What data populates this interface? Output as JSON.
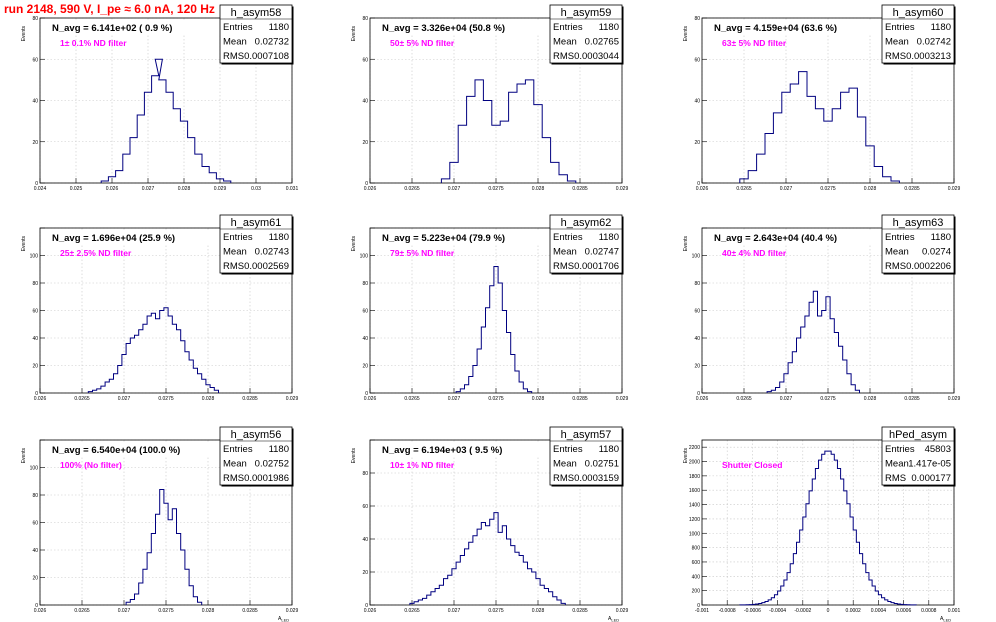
{
  "page": {
    "title": "run 2148,   590 V, I_pe ≈ 6.0 nA, 120 Hz"
  },
  "colors": {
    "title": "#ff0000",
    "hist": "#000080",
    "filter_label": "#ff00ff",
    "grid": "#c8c8c8",
    "axis": "#000000"
  },
  "chart_data": [
    {
      "type": "histogram",
      "name": "h_asym58",
      "stats": {
        "labels": [
          "Entries",
          "Mean",
          "RMS"
        ],
        "values": [
          "1180",
          "0.02732",
          "0.0007108"
        ]
      },
      "n_avg": "N_avg = 6.141e+02 ( 0.9 %)",
      "filter": "1± 0.1% ND filter",
      "ylabel": "Events",
      "xlabel": "",
      "xlim": [
        0.024,
        0.031
      ],
      "ylim": [
        0,
        80
      ],
      "xticks": [
        0.024,
        0.025,
        0.026,
        0.027,
        0.028,
        0.029,
        0.03,
        0.031
      ],
      "xtick_labels": [
        "0.024",
        "0.025",
        "0.026",
        "0.027",
        "0.028",
        "0.029",
        "0.03",
        "0.031"
      ],
      "yticks": [
        0,
        20,
        40,
        60,
        80
      ],
      "ytick_labels": [
        "0",
        "20",
        "40",
        "60",
        "80"
      ],
      "x": [
        0.0258,
        0.026,
        0.0262,
        0.0264,
        0.0266,
        0.0268,
        0.027,
        0.0272,
        0.0273,
        0.0274,
        0.0276,
        0.0278,
        0.028,
        0.0282,
        0.0284,
        0.0286,
        0.0288,
        0.029,
        0.0292
      ],
      "y": [
        1,
        3,
        6,
        14,
        22,
        33,
        44,
        52,
        60,
        50,
        44,
        36,
        30,
        22,
        14,
        8,
        5,
        2,
        1
      ]
    },
    {
      "type": "histogram",
      "name": "h_asym59",
      "stats": {
        "labels": [
          "Entries",
          "Mean",
          "RMS"
        ],
        "values": [
          "1180",
          "0.02765",
          "0.0003044"
        ]
      },
      "n_avg": "N_avg = 3.326e+04 (50.8 %)",
      "filter": "50± 5% ND filter",
      "ylabel": "Events",
      "xlabel": "",
      "xlim": [
        0.026,
        0.029
      ],
      "ylim": [
        0,
        80
      ],
      "xticks": [
        0.026,
        0.0265,
        0.027,
        0.0275,
        0.028,
        0.0285,
        0.029
      ],
      "xtick_labels": [
        "0.026",
        "0.0265",
        "0.027",
        "0.0275",
        "0.028",
        "0.0285",
        "0.029"
      ],
      "yticks": [
        0,
        20,
        40,
        60,
        80
      ],
      "ytick_labels": [
        "0",
        "20",
        "40",
        "60",
        "80"
      ],
      "x": [
        0.0269,
        0.027,
        0.0271,
        0.0272,
        0.0273,
        0.0274,
        0.0275,
        0.0276,
        0.0277,
        0.0278,
        0.0279,
        0.028,
        0.0281,
        0.0282,
        0.0283,
        0.0284
      ],
      "y": [
        2,
        10,
        28,
        42,
        50,
        40,
        28,
        30,
        44,
        48,
        50,
        38,
        22,
        10,
        4,
        1
      ]
    },
    {
      "type": "histogram",
      "name": "h_asym60",
      "stats": {
        "labels": [
          "Entries",
          "Mean",
          "RMS"
        ],
        "values": [
          "1180",
          "0.02742",
          "0.0003213"
        ]
      },
      "n_avg": "N_avg = 4.159e+04 (63.6 %)",
      "filter": "63± 5% ND filter",
      "ylabel": "Events",
      "xlabel": "",
      "xlim": [
        0.026,
        0.029
      ],
      "ylim": [
        0,
        80
      ],
      "xticks": [
        0.026,
        0.0265,
        0.027,
        0.0275,
        0.028,
        0.0285,
        0.029
      ],
      "xtick_labels": [
        "0.026",
        "0.0265",
        "0.027",
        "0.0275",
        "0.028",
        "0.0285",
        "0.029"
      ],
      "yticks": [
        0,
        20,
        40,
        60,
        80
      ],
      "ytick_labels": [
        "0",
        "20",
        "40",
        "60",
        "80"
      ],
      "x": [
        0.0265,
        0.0266,
        0.0267,
        0.0268,
        0.0269,
        0.027,
        0.0271,
        0.0272,
        0.0273,
        0.0274,
        0.0275,
        0.0276,
        0.0277,
        0.0278,
        0.0279,
        0.028,
        0.0281,
        0.0282,
        0.0283
      ],
      "y": [
        2,
        6,
        14,
        24,
        34,
        44,
        48,
        54,
        42,
        36,
        30,
        36,
        44,
        46,
        32,
        18,
        8,
        3,
        1
      ]
    },
    {
      "type": "histogram",
      "name": "h_asym61",
      "stats": {
        "labels": [
          "Entries",
          "Mean",
          "RMS"
        ],
        "values": [
          "1180",
          "0.02743",
          "0.0002569"
        ]
      },
      "n_avg": "N_avg = 1.696e+04 (25.9 %)",
      "filter": "25± 2.5% ND filter",
      "ylabel": "Events",
      "xlabel": "",
      "xlim": [
        0.026,
        0.029
      ],
      "ylim": [
        0,
        120
      ],
      "xticks": [
        0.026,
        0.0265,
        0.027,
        0.0275,
        0.028,
        0.0285,
        0.029
      ],
      "xtick_labels": [
        "0.026",
        "0.0265",
        "0.027",
        "0.0275",
        "0.028",
        "0.0285",
        "0.029"
      ],
      "yticks": [
        0,
        20,
        40,
        60,
        80,
        100,
        120
      ],
      "ytick_labels": [
        "0",
        "20",
        "40",
        "60",
        "80",
        "100",
        ""
      ],
      "x": [
        0.0266,
        0.02665,
        0.0267,
        0.02675,
        0.0268,
        0.02685,
        0.0269,
        0.02695,
        0.027,
        0.02705,
        0.0271,
        0.02715,
        0.0272,
        0.02725,
        0.0273,
        0.02735,
        0.0274,
        0.02745,
        0.0275,
        0.02755,
        0.0276,
        0.02765,
        0.0277,
        0.02775,
        0.0278,
        0.02785,
        0.0279,
        0.02795,
        0.028,
        0.02805,
        0.0281
      ],
      "y": [
        1,
        2,
        3,
        5,
        8,
        10,
        14,
        20,
        28,
        36,
        40,
        42,
        46,
        50,
        56,
        58,
        54,
        60,
        62,
        56,
        50,
        46,
        38,
        30,
        24,
        18,
        14,
        10,
        6,
        4,
        2
      ]
    },
    {
      "type": "histogram",
      "name": "h_asym62",
      "stats": {
        "labels": [
          "Entries",
          "Mean",
          "RMS"
        ],
        "values": [
          "1180",
          "0.02747",
          "0.0001706"
        ]
      },
      "n_avg": "N_avg = 5.223e+04 (79.9 %)",
      "filter": "79± 5% ND filter",
      "ylabel": "Events",
      "xlabel": "",
      "xlim": [
        0.026,
        0.029
      ],
      "ylim": [
        0,
        120
      ],
      "xticks": [
        0.026,
        0.0265,
        0.027,
        0.0275,
        0.028,
        0.0285,
        0.029
      ],
      "xtick_labels": [
        "0.026",
        "0.0265",
        "0.027",
        "0.0275",
        "0.028",
        "0.0285",
        "0.029"
      ],
      "yticks": [
        0,
        20,
        40,
        60,
        80,
        100,
        120
      ],
      "ytick_labels": [
        "0",
        "20",
        "40",
        "60",
        "80",
        "100",
        ""
      ],
      "x": [
        0.02705,
        0.0271,
        0.02715,
        0.0272,
        0.02725,
        0.0273,
        0.02735,
        0.0274,
        0.02745,
        0.0275,
        0.02755,
        0.0276,
        0.02765,
        0.0277,
        0.02775,
        0.0278,
        0.02785,
        0.0279
      ],
      "y": [
        1,
        3,
        6,
        12,
        20,
        32,
        48,
        62,
        78,
        92,
        80,
        60,
        44,
        28,
        16,
        8,
        3,
        1
      ]
    },
    {
      "type": "histogram",
      "name": "h_asym63",
      "stats": {
        "labels": [
          "Entries",
          "Mean",
          "RMS"
        ],
        "values": [
          "1180",
          "0.0274",
          "0.0002206"
        ]
      },
      "n_avg": "N_avg = 2.643e+04 (40.4 %)",
      "filter": "40± 4% ND filter",
      "ylabel": "Events",
      "xlabel": "",
      "xlim": [
        0.026,
        0.029
      ],
      "ylim": [
        0,
        120
      ],
      "xticks": [
        0.026,
        0.0265,
        0.027,
        0.0275,
        0.028,
        0.0285,
        0.029
      ],
      "xtick_labels": [
        "0.026",
        "0.0265",
        "0.027",
        "0.0275",
        "0.028",
        "0.0285",
        "0.029"
      ],
      "yticks": [
        0,
        20,
        40,
        60,
        80,
        100,
        120
      ],
      "ytick_labels": [
        "0",
        "20",
        "40",
        "60",
        "80",
        "100",
        ""
      ],
      "x": [
        0.0268,
        0.02685,
        0.0269,
        0.02695,
        0.027,
        0.02705,
        0.0271,
        0.02715,
        0.0272,
        0.02725,
        0.0273,
        0.02735,
        0.0274,
        0.02745,
        0.0275,
        0.02755,
        0.0276,
        0.02765,
        0.0277,
        0.02775,
        0.0278,
        0.02785
      ],
      "y": [
        1,
        2,
        4,
        8,
        14,
        22,
        30,
        40,
        48,
        56,
        66,
        74,
        56,
        60,
        70,
        54,
        44,
        34,
        24,
        14,
        6,
        2
      ]
    },
    {
      "type": "histogram",
      "name": "h_asym56",
      "stats": {
        "labels": [
          "Entries",
          "Mean",
          "RMS"
        ],
        "values": [
          "1180",
          "0.02752",
          "0.0001986"
        ]
      },
      "n_avg": "N_avg = 6.540e+04 (100.0 %)",
      "filter": "100% (No filter)",
      "ylabel": "Events",
      "xlabel": "A_{LED}",
      "xlim": [
        0.026,
        0.029
      ],
      "ylim": [
        0,
        120
      ],
      "xticks": [
        0.026,
        0.0265,
        0.027,
        0.0275,
        0.028,
        0.0285,
        0.029
      ],
      "xtick_labels": [
        "0.026",
        "0.0265",
        "0.027",
        "0.0275",
        "0.028",
        "0.0285",
        "0.029"
      ],
      "yticks": [
        0,
        20,
        40,
        60,
        80,
        100,
        120
      ],
      "ytick_labels": [
        "0",
        "20",
        "40",
        "60",
        "80",
        "100",
        ""
      ],
      "x": [
        0.02705,
        0.0271,
        0.02715,
        0.0272,
        0.02725,
        0.0273,
        0.02735,
        0.0274,
        0.02745,
        0.0275,
        0.02755,
        0.0276,
        0.02765,
        0.0277,
        0.02775,
        0.0278,
        0.02785,
        0.0279
      ],
      "y": [
        2,
        4,
        8,
        16,
        26,
        38,
        52,
        66,
        84,
        74,
        62,
        70,
        52,
        40,
        26,
        14,
        6,
        2
      ]
    },
    {
      "type": "histogram",
      "name": "h_asym57",
      "stats": {
        "labels": [
          "Entries",
          "Mean",
          "RMS"
        ],
        "values": [
          "1180",
          "0.02751",
          "0.0003159"
        ]
      },
      "n_avg": "N_avg = 6.194e+03 ( 9.5 %)",
      "filter": "10± 1% ND filter",
      "ylabel": "Events",
      "xlabel": "A_{LED}",
      "xlim": [
        0.026,
        0.029
      ],
      "ylim": [
        0,
        100
      ],
      "xticks": [
        0.026,
        0.0265,
        0.027,
        0.0275,
        0.028,
        0.0285,
        0.029
      ],
      "xtick_labels": [
        "0.026",
        "0.0265",
        "0.027",
        "0.0275",
        "0.028",
        "0.0285",
        "0.029"
      ],
      "yticks": [
        0,
        20,
        40,
        60,
        80,
        100
      ],
      "ytick_labels": [
        "0",
        "20",
        "40",
        "60",
        "80",
        ""
      ],
      "x": [
        0.0265,
        0.02655,
        0.0266,
        0.02665,
        0.0267,
        0.02675,
        0.0268,
        0.02685,
        0.0269,
        0.02695,
        0.027,
        0.02705,
        0.0271,
        0.02715,
        0.0272,
        0.02725,
        0.0273,
        0.02735,
        0.0274,
        0.02745,
        0.0275,
        0.02755,
        0.0276,
        0.02765,
        0.0277,
        0.02775,
        0.0278,
        0.02785,
        0.0279,
        0.02795,
        0.028,
        0.02805,
        0.0281,
        0.02815,
        0.0282,
        0.02825,
        0.0283
      ],
      "y": [
        1,
        2,
        3,
        4,
        6,
        8,
        10,
        12,
        16,
        18,
        22,
        26,
        30,
        34,
        38,
        42,
        46,
        50,
        48,
        52,
        56,
        44,
        48,
        40,
        36,
        32,
        30,
        26,
        22,
        20,
        16,
        12,
        10,
        8,
        5,
        3,
        1
      ]
    },
    {
      "type": "histogram",
      "name": "hPed_asym",
      "stats": {
        "labels": [
          "Entries",
          "Mean",
          "RMS"
        ],
        "values": [
          "45803",
          "1.417e-05",
          "0.000177"
        ]
      },
      "n_avg": "",
      "filter": "Shutter Closed",
      "ylabel": "Events",
      "xlabel": "A_{LED}",
      "xlim": [
        -0.001,
        0.001
      ],
      "ylim": [
        0,
        2300
      ],
      "xticks": [
        -0.001,
        -0.0008,
        -0.0006,
        -0.0004,
        -0.0002,
        0,
        0.0002,
        0.0004,
        0.0006,
        0.0008,
        0.001
      ],
      "xtick_labels": [
        "-0.001",
        "-0.0008",
        "-0.0006",
        "-0.0004",
        "-0.0002",
        "0",
        "0.0002",
        "0.0004",
        "0.0006",
        "0.0008",
        "0.001"
      ],
      "yticks": [
        0,
        200,
        400,
        600,
        800,
        1000,
        1200,
        1400,
        1600,
        1800,
        2000,
        2200
      ],
      "ytick_labels": [
        "0",
        "200",
        "400",
        "600",
        "800",
        "1000",
        "1200",
        "1400",
        "1600",
        "1800",
        "2000",
        "2200"
      ],
      "gaussian": {
        "mean": 0.0,
        "sigma": 0.000177,
        "peak": 2150,
        "xmin": -0.0007,
        "xmax": 0.0007,
        "bins": 56
      }
    }
  ]
}
